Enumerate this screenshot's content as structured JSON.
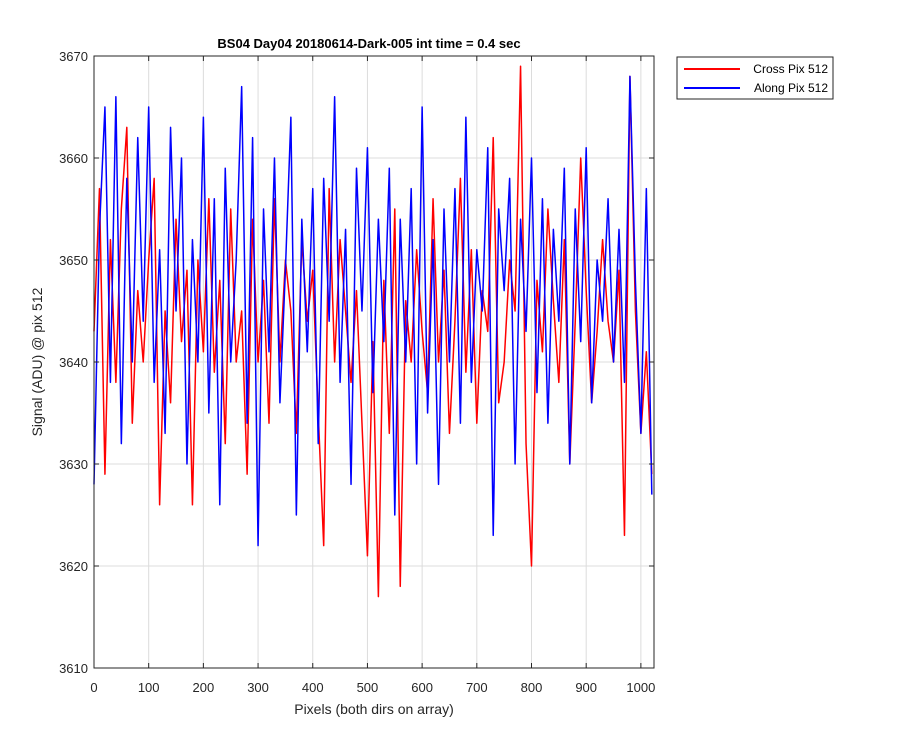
{
  "chart_data": {
    "type": "line",
    "title": "BS04 Day04 20180614-Dark-005 int time = 0.4 sec",
    "xlabel": "Pixels (both dirs on array)",
    "ylabel": "Signal (ADU) @ pix 512",
    "xlim": [
      0,
      1024
    ],
    "ylim": [
      3610,
      3670
    ],
    "x_ticks": [
      0,
      100,
      200,
      300,
      400,
      500,
      600,
      700,
      800,
      900,
      1000
    ],
    "x_tick_labels": [
      "0",
      "100",
      "200",
      "300",
      "400",
      "500",
      "600",
      "700",
      "800",
      "900",
      "1000"
    ],
    "y_ticks": [
      3610,
      3620,
      3630,
      3640,
      3650,
      3660,
      3670
    ],
    "y_tick_labels": [
      "3610",
      "3620",
      "3630",
      "3640",
      "3650",
      "3660",
      "3670"
    ],
    "grid": true,
    "legend_position": "outside-top-right",
    "x": [
      0,
      10,
      20,
      30,
      40,
      50,
      60,
      70,
      80,
      90,
      100,
      110,
      120,
      130,
      140,
      150,
      160,
      170,
      180,
      190,
      200,
      210,
      220,
      230,
      240,
      250,
      260,
      270,
      280,
      290,
      300,
      310,
      320,
      330,
      340,
      350,
      360,
      370,
      380,
      390,
      400,
      410,
      420,
      430,
      440,
      450,
      460,
      470,
      480,
      490,
      500,
      510,
      520,
      530,
      540,
      550,
      560,
      570,
      580,
      590,
      600,
      610,
      620,
      630,
      640,
      650,
      660,
      670,
      680,
      690,
      700,
      710,
      720,
      730,
      740,
      750,
      760,
      770,
      780,
      790,
      800,
      810,
      820,
      830,
      840,
      850,
      860,
      870,
      880,
      890,
      900,
      910,
      920,
      930,
      940,
      950,
      960,
      970,
      980,
      990,
      1000,
      1010,
      1020
    ],
    "series": [
      {
        "name": "Cross Pix 512",
        "color": "#ff0000",
        "values": [
          3643,
          3657,
          3629,
          3652,
          3638,
          3655,
          3663,
          3634,
          3647,
          3640,
          3650,
          3658,
          3626,
          3645,
          3636,
          3654,
          3642,
          3649,
          3626,
          3650,
          3641,
          3656,
          3639,
          3648,
          3632,
          3655,
          3640,
          3645,
          3629,
          3654,
          3640,
          3648,
          3634,
          3656,
          3640,
          3650,
          3645,
          3633,
          3652,
          3644,
          3649,
          3635,
          3622,
          3657,
          3640,
          3652,
          3645,
          3638,
          3647,
          3634,
          3621,
          3642,
          3617,
          3648,
          3633,
          3655,
          3618,
          3646,
          3640,
          3651,
          3643,
          3637,
          3656,
          3640,
          3649,
          3633,
          3644,
          3658,
          3639,
          3651,
          3634,
          3647,
          3643,
          3662,
          3636,
          3640,
          3650,
          3645,
          3669,
          3632,
          3620,
          3648,
          3641,
          3655,
          3646,
          3638,
          3652,
          3630,
          3644,
          3660,
          3647,
          3636,
          3643,
          3652,
          3644,
          3640,
          3649,
          3623,
          3668,
          3645,
          3633,
          3641,
          3629
        ]
      },
      {
        "name": "Along Pix 512",
        "color": "#0000ff",
        "values": [
          3628,
          3653,
          3665,
          3638,
          3666,
          3632,
          3658,
          3640,
          3662,
          3644,
          3665,
          3638,
          3651,
          3633,
          3663,
          3645,
          3660,
          3630,
          3652,
          3640,
          3664,
          3635,
          3656,
          3626,
          3659,
          3640,
          3650,
          3667,
          3634,
          3662,
          3622,
          3655,
          3641,
          3660,
          3636,
          3649,
          3664,
          3625,
          3654,
          3641,
          3657,
          3632,
          3658,
          3644,
          3666,
          3638,
          3653,
          3628,
          3659,
          3645,
          3661,
          3637,
          3654,
          3642,
          3659,
          3625,
          3654,
          3640,
          3657,
          3630,
          3665,
          3635,
          3652,
          3628,
          3655,
          3640,
          3657,
          3634,
          3664,
          3638,
          3651,
          3645,
          3661,
          3623,
          3655,
          3647,
          3658,
          3630,
          3654,
          3643,
          3660,
          3637,
          3656,
          3634,
          3653,
          3644,
          3659,
          3630,
          3655,
          3642,
          3661,
          3636,
          3650,
          3644,
          3656,
          3640,
          3653,
          3638,
          3668,
          3648,
          3633,
          3657,
          3627
        ]
      }
    ]
  }
}
